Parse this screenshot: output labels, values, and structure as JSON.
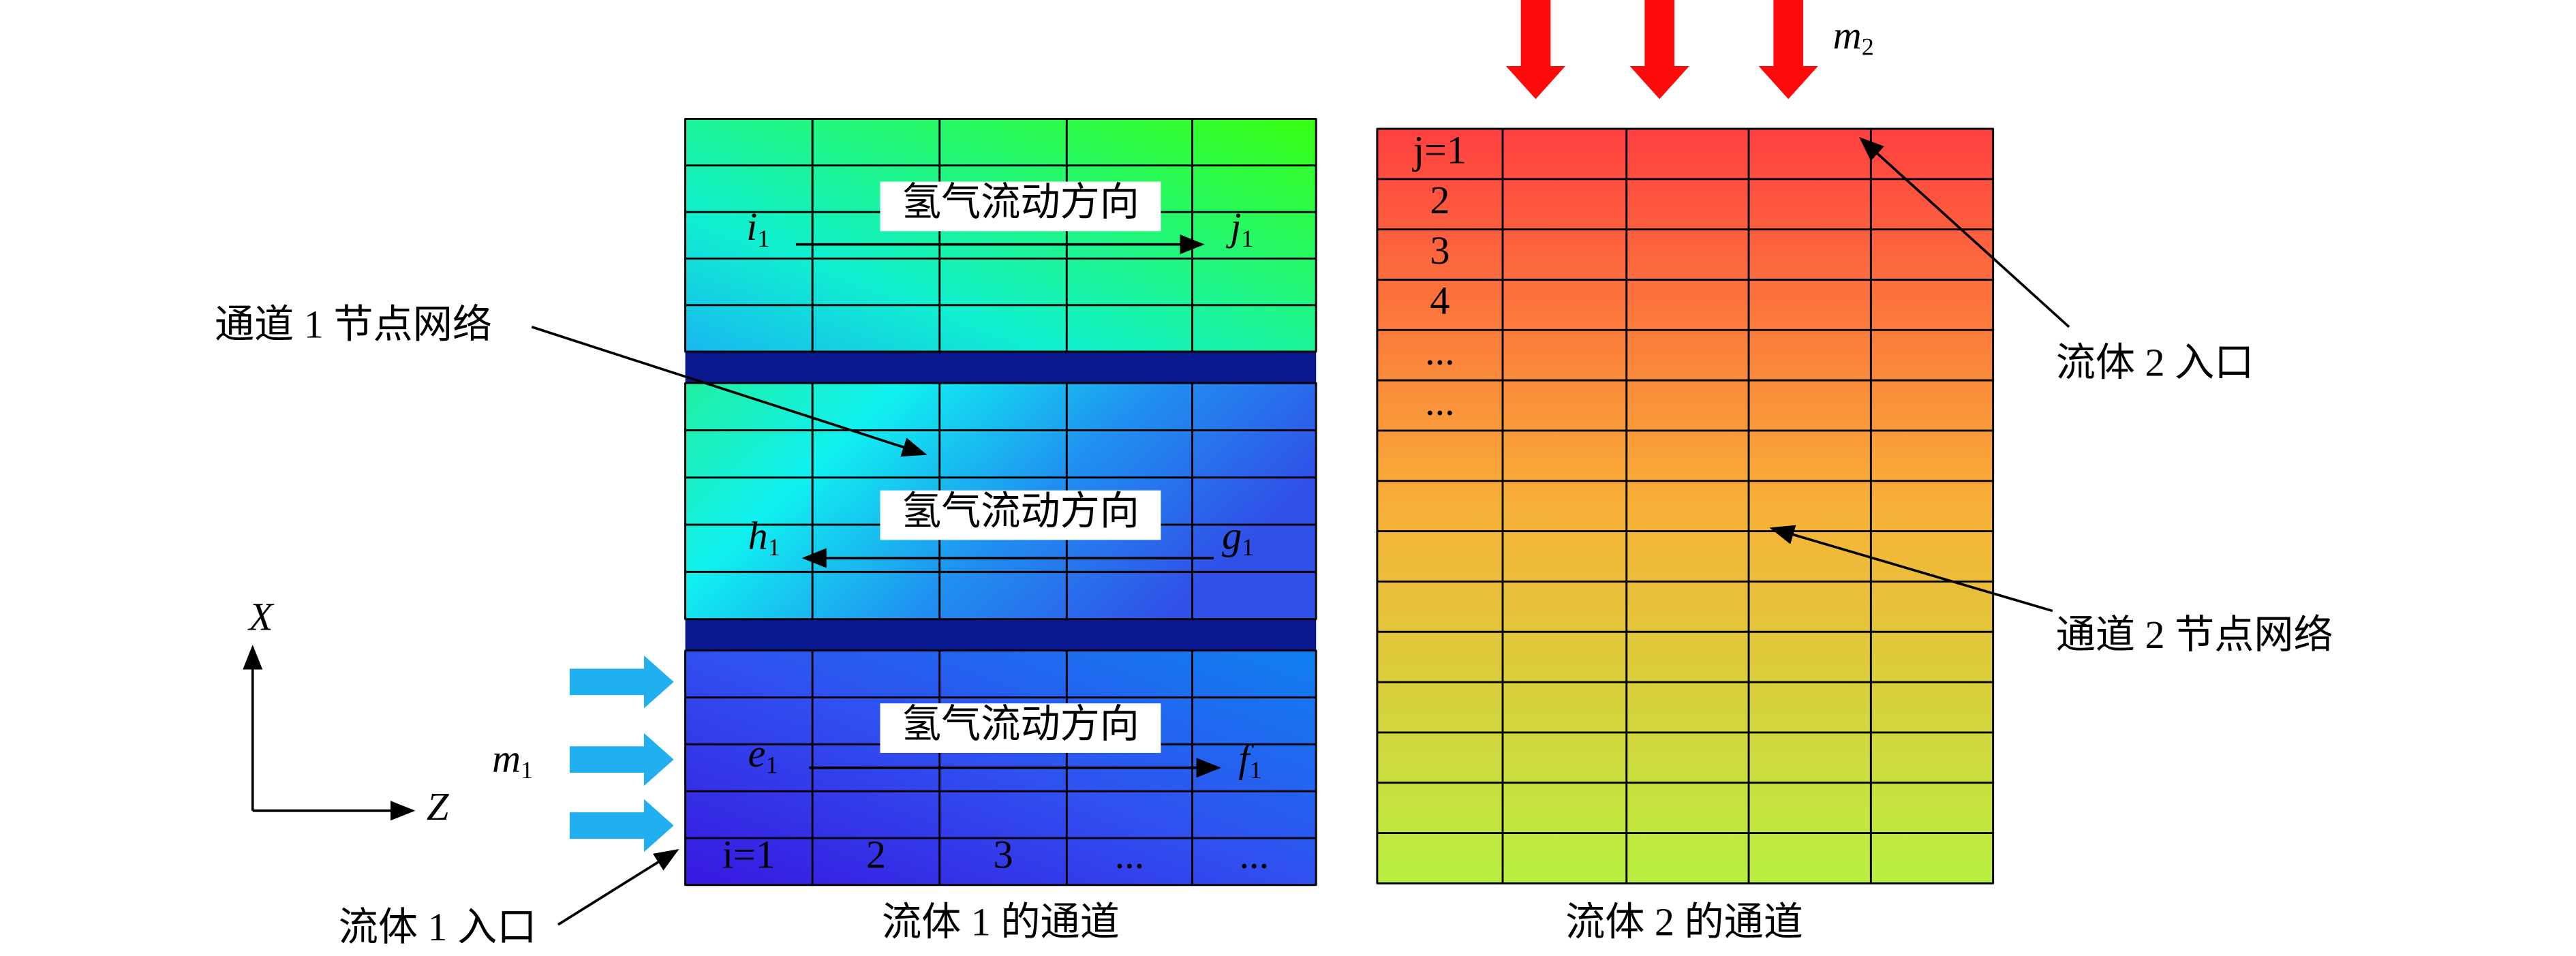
{
  "channel1": {
    "caption": "流体 1 的通道",
    "flow_labels": [
      "氢气流动方向",
      "氢气流动方向",
      "氢气流动方向"
    ],
    "nodes": [
      {
        "symbol": "i",
        "subscript": "1"
      },
      {
        "symbol": "j",
        "subscript": "1"
      },
      {
        "symbol": "h",
        "subscript": "1"
      },
      {
        "symbol": "g",
        "subscript": "1"
      },
      {
        "symbol": "e",
        "subscript": "1"
      },
      {
        "symbol": "f",
        "subscript": "1"
      }
    ],
    "column_labels": [
      "i=1",
      "2",
      "3",
      "...",
      "..."
    ]
  },
  "channel2": {
    "caption": "流体 2 的通道",
    "row_labels": [
      "j=1",
      "2",
      "3",
      "4",
      "...",
      "..."
    ]
  },
  "annotations": {
    "channel1_grid": "通道 1 节点网络",
    "channel2_grid": "通道 2 节点网络",
    "fluid2_inlet": "流体 2 入口",
    "fluid1_inlet": "流体 1 入口"
  },
  "flows": {
    "m1": {
      "symbol": "m",
      "subscript": "1"
    },
    "m2": {
      "symbol": "m",
      "subscript": "2"
    }
  },
  "axes": {
    "x": "X",
    "z": "Z"
  }
}
